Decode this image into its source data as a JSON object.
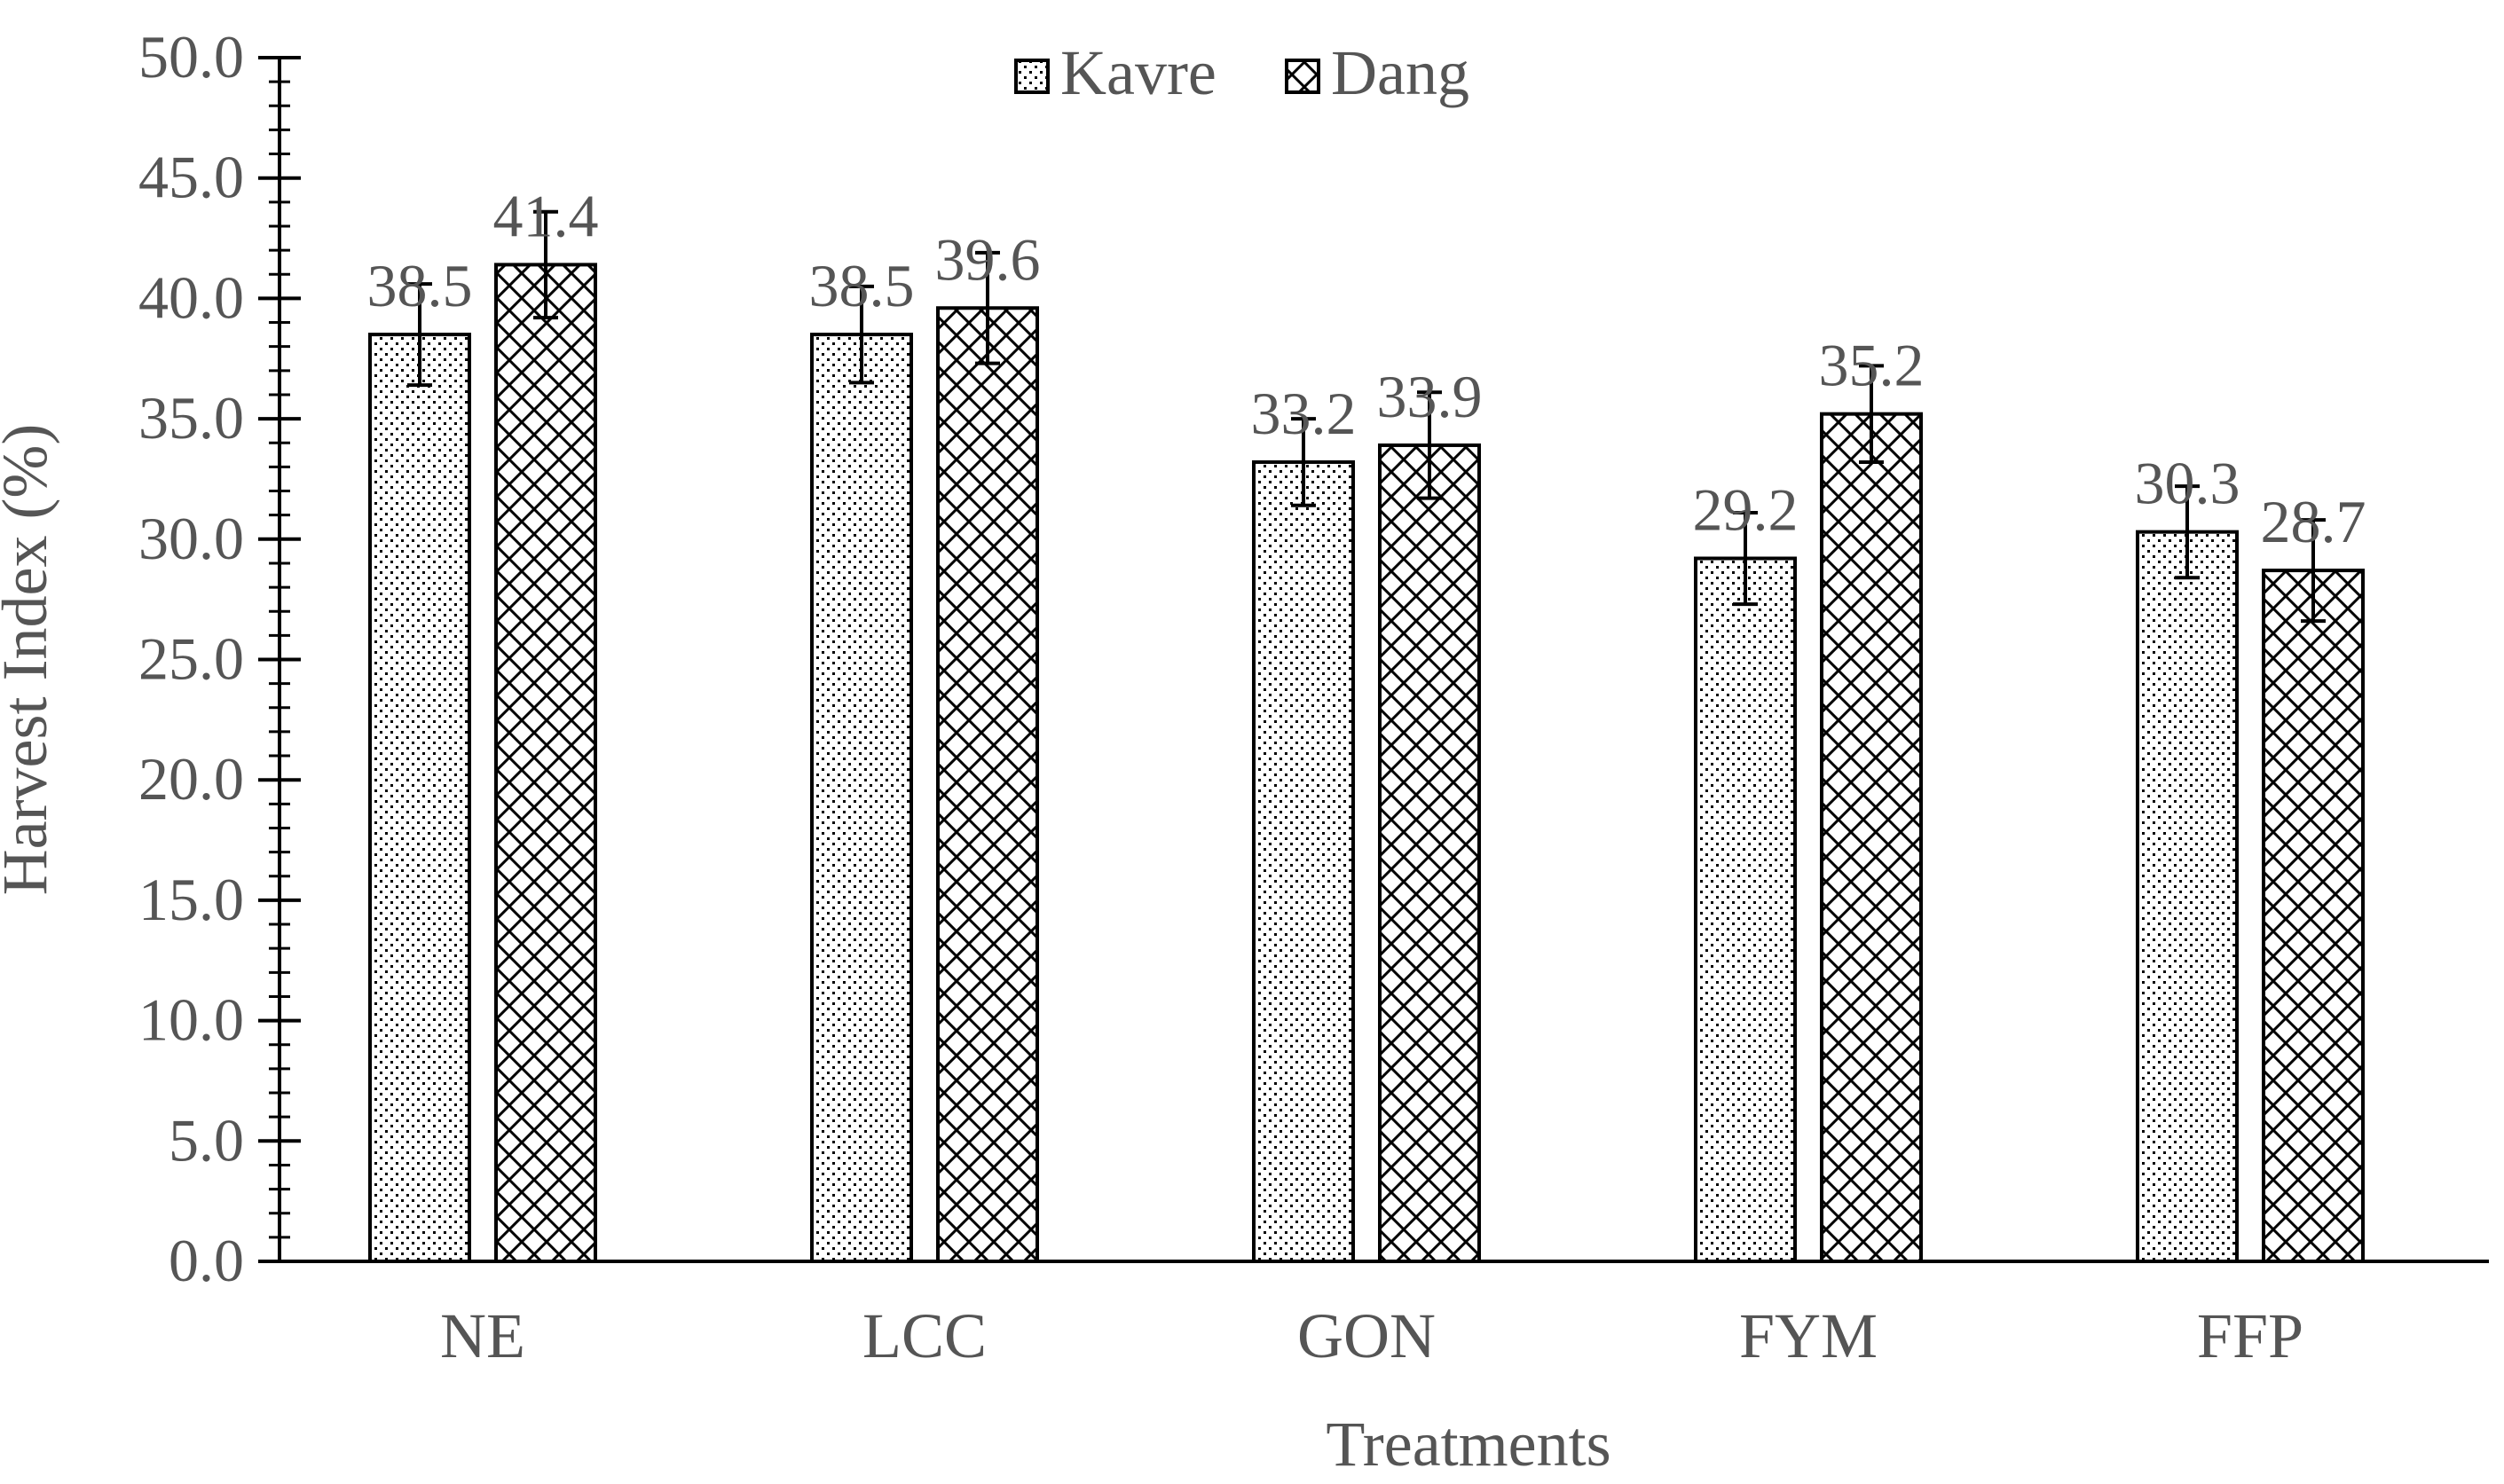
{
  "chart_data": {
    "type": "bar",
    "title": "",
    "xlabel": "Treatments",
    "ylabel": "Harvest Index (%)",
    "ylim": [
      0,
      50
    ],
    "y_ticks": [
      "0.0",
      "5.0",
      "10.0",
      "15.0",
      "20.0",
      "25.0",
      "30.0",
      "35.0",
      "40.0",
      "45.0",
      "50.0"
    ],
    "y_minor_step": 1,
    "grid": false,
    "legend_position": "top-center",
    "categories": [
      "NE",
      "LCC",
      "GON",
      "FYM",
      "FFP"
    ],
    "series": [
      {
        "name": "Kavre",
        "pattern": "dots",
        "values": [
          38.5,
          38.5,
          33.2,
          29.2,
          30.3
        ],
        "labels": [
          "38.5",
          "38.5",
          "33.2",
          "29.2",
          "30.3"
        ],
        "error": [
          2.1,
          2.0,
          1.8,
          1.9,
          1.9
        ]
      },
      {
        "name": "Dang",
        "pattern": "crosshatch",
        "values": [
          41.4,
          39.6,
          33.9,
          35.2,
          28.7
        ],
        "labels": [
          "41.4",
          "39.6",
          "33.9",
          "35.2",
          "28.7"
        ],
        "error": [
          2.2,
          2.3,
          2.2,
          2.0,
          2.1
        ]
      }
    ],
    "colors": {
      "bar_fill": "#ffffff",
      "bar_stroke": "#000000",
      "axis": "#000000",
      "text": "#555555"
    }
  }
}
